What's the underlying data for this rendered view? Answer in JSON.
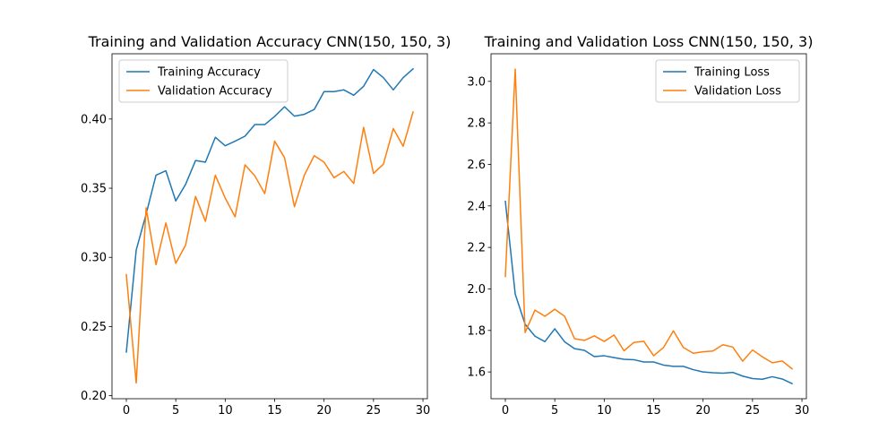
{
  "chart_data": [
    {
      "type": "line",
      "title": "Training and Validation Accuracy CNN(150, 150, 3)",
      "xlabel": "",
      "ylabel": "",
      "xlim": [
        -1.45,
        30.45
      ],
      "ylim": [
        0.1978,
        0.4472
      ],
      "x_ticks": [
        0,
        5,
        10,
        15,
        20,
        25,
        30
      ],
      "x_tick_labels": [
        "0",
        "5",
        "10",
        "15",
        "20",
        "25",
        "30"
      ],
      "y_ticks": [
        0.2,
        0.25,
        0.3,
        0.35,
        0.4
      ],
      "y_tick_labels": [
        "0.20",
        "0.25",
        "0.30",
        "0.35",
        "0.40"
      ],
      "grid": false,
      "legend_position": "top-left",
      "x": [
        0,
        1,
        2,
        3,
        4,
        5,
        6,
        7,
        8,
        9,
        10,
        11,
        12,
        13,
        14,
        15,
        16,
        17,
        18,
        19,
        20,
        21,
        22,
        23,
        24,
        25,
        26,
        27,
        28,
        29
      ],
      "series": [
        {
          "name": "Training Accuracy",
          "color": "#1f77b4",
          "values": [
            0.2315,
            0.3053,
            0.3312,
            0.3594,
            0.3626,
            0.3408,
            0.3529,
            0.37,
            0.3688,
            0.3868,
            0.3807,
            0.384,
            0.3876,
            0.396,
            0.396,
            0.4019,
            0.4089,
            0.4021,
            0.4034,
            0.4069,
            0.4198,
            0.4198,
            0.4211,
            0.4172,
            0.4237,
            0.4358,
            0.4299,
            0.4211,
            0.4299,
            0.4363
          ]
        },
        {
          "name": "Validation Accuracy",
          "color": "#ff7f0e",
          "values": [
            0.2875,
            0.2092,
            0.3358,
            0.2947,
            0.3249,
            0.2957,
            0.309,
            0.344,
            0.3261,
            0.3594,
            0.3429,
            0.3293,
            0.3669,
            0.3589,
            0.3461,
            0.384,
            0.3721,
            0.3366,
            0.3594,
            0.3735,
            0.3688,
            0.3576,
            0.3621,
            0.3534,
            0.394,
            0.3607,
            0.3674,
            0.3931,
            0.3803,
            0.4051
          ]
        }
      ]
    },
    {
      "type": "line",
      "title": "Training and Validation Loss CNN(150, 150, 3)",
      "xlabel": "",
      "ylabel": "",
      "xlim": [
        -1.45,
        30.45
      ],
      "ylim": [
        1.471,
        3.133
      ],
      "x_ticks": [
        0,
        5,
        10,
        15,
        20,
        25,
        30
      ],
      "x_tick_labels": [
        "0",
        "5",
        "10",
        "15",
        "20",
        "25",
        "30"
      ],
      "y_ticks": [
        1.6,
        1.8,
        2.0,
        2.2,
        2.4,
        2.6,
        2.8,
        3.0
      ],
      "y_tick_labels": [
        "1.6",
        "1.8",
        "2.0",
        "2.2",
        "2.4",
        "2.6",
        "2.8",
        "3.0"
      ],
      "grid": false,
      "legend_position": "top-right",
      "x": [
        0,
        1,
        2,
        3,
        4,
        5,
        6,
        7,
        8,
        9,
        10,
        11,
        12,
        13,
        14,
        15,
        16,
        17,
        18,
        19,
        20,
        21,
        22,
        23,
        24,
        25,
        26,
        27,
        28,
        29
      ],
      "series": [
        {
          "name": "Training Loss",
          "color": "#1f77b4",
          "values": [
            2.422,
            1.975,
            1.83,
            1.772,
            1.746,
            1.808,
            1.745,
            1.712,
            1.704,
            1.674,
            1.678,
            1.669,
            1.661,
            1.659,
            1.648,
            1.648,
            1.633,
            1.627,
            1.627,
            1.611,
            1.6,
            1.596,
            1.594,
            1.598,
            1.58,
            1.568,
            1.565,
            1.577,
            1.566,
            1.544
          ]
        },
        {
          "name": "Validation Loss",
          "color": "#ff7f0e",
          "values": [
            2.06,
            3.059,
            1.79,
            1.898,
            1.868,
            1.902,
            1.868,
            1.76,
            1.752,
            1.774,
            1.747,
            1.778,
            1.702,
            1.742,
            1.748,
            1.678,
            1.718,
            1.798,
            1.718,
            1.69,
            1.697,
            1.701,
            1.731,
            1.72,
            1.652,
            1.706,
            1.673,
            1.644,
            1.653,
            1.615
          ]
        }
      ]
    }
  ]
}
